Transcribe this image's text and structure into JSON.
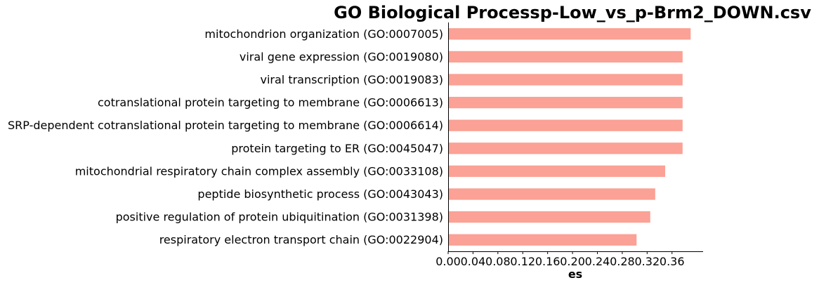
{
  "chart_data": {
    "type": "bar",
    "orientation": "horizontal",
    "title": "GO Biological Processp-Low_vs_p-Brm2_DOWN.csv",
    "xlabel": "es",
    "ylabel": "",
    "categories": [
      "mitochondrion organization (GO:0007005)",
      "viral gene expression (GO:0019080)",
      "viral transcription (GO:0019083)",
      "cotranslational protein targeting to membrane (GO:0006613)",
      "SRP-dependent cotranslational protein targeting to membrane (GO:0006614)",
      "protein targeting to ER (GO:0045047)",
      "mitochondrial respiratory chain complex assembly (GO:0033108)",
      "peptide biosynthetic process (GO:0043043)",
      "positive regulation of protein ubiquitination (GO:0031398)",
      "respiratory electron transport chain (GO:0022904)"
    ],
    "values": [
      0.39,
      0.377,
      0.377,
      0.377,
      0.377,
      0.377,
      0.349,
      0.333,
      0.325,
      0.303
    ],
    "xlim": [
      0,
      0.41
    ],
    "xticks": [
      0.0,
      0.04,
      0.08,
      0.12,
      0.16,
      0.2,
      0.24,
      0.28,
      0.32,
      0.36
    ],
    "xtick_labels": [
      "0.00",
      "0.04",
      "0.08",
      "0.12",
      "0.16",
      "0.20",
      "0.24",
      "0.28",
      "0.32",
      "0.36"
    ],
    "bar_color": "#fba195",
    "grid": false
  }
}
